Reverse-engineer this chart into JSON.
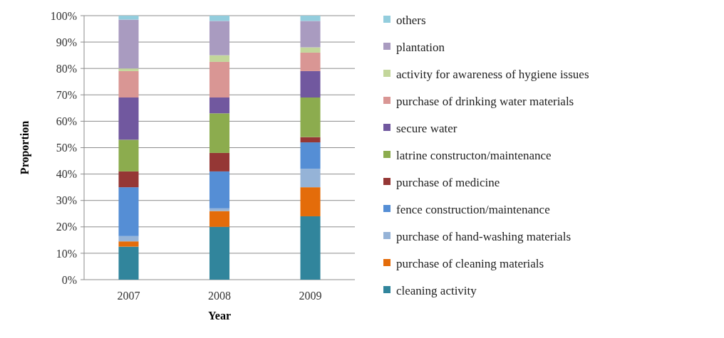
{
  "chart_data": {
    "type": "bar",
    "stacked": true,
    "xlabel": "Year",
    "ylabel": "Proportion",
    "categories": [
      "2007",
      "2008",
      "2009"
    ],
    "ylim": [
      0,
      100
    ],
    "yticks": [
      {
        "value": 0,
        "label": "0%"
      },
      {
        "value": 10,
        "label": "10%"
      },
      {
        "value": 20,
        "label": "20%"
      },
      {
        "value": 30,
        "label": "30%"
      },
      {
        "value": 40,
        "label": "40%"
      },
      {
        "value": 50,
        "label": "50%"
      },
      {
        "value": 60,
        "label": "60%"
      },
      {
        "value": 70,
        "label": "70%"
      },
      {
        "value": 80,
        "label": "80%"
      },
      {
        "value": 90,
        "label": "90%"
      },
      {
        "value": 100,
        "label": "100%"
      }
    ],
    "grid": "y",
    "legend": "right",
    "series": [
      {
        "name": "cleaning activity",
        "color": "#31859c",
        "values": [
          12.5,
          20,
          24
        ]
      },
      {
        "name": "purchase of cleaning materials",
        "color": "#e46c0a",
        "values": [
          2,
          6,
          11
        ]
      },
      {
        "name": "purchase of hand-washing materials",
        "color": "#95b3d7",
        "values": [
          2,
          1,
          7
        ]
      },
      {
        "name": "fence construction/maintenance",
        "color": "#558ed5",
        "values": [
          18.5,
          14,
          10
        ]
      },
      {
        "name": "purchase of medicine",
        "color": "#953735",
        "values": [
          6,
          7,
          2
        ]
      },
      {
        "name": "latrine constructon/maintenance",
        "color": "#8cac4e",
        "values": [
          12,
          15,
          15
        ]
      },
      {
        "name": "secure water",
        "color": "#71589f",
        "values": [
          16,
          6,
          10
        ]
      },
      {
        "name": "purchase of drinking water materials",
        "color": "#d99694",
        "values": [
          10,
          13.5,
          7
        ]
      },
      {
        "name": "activity for awareness of hygiene issues",
        "color": "#c3d69b",
        "values": [
          1,
          2.5,
          2
        ]
      },
      {
        "name": "plantation",
        "color": "#a99bc0",
        "values": [
          18.5,
          13,
          10
        ]
      },
      {
        "name": "others",
        "color": "#93cddd",
        "values": [
          1.5,
          2,
          2
        ]
      }
    ]
  }
}
